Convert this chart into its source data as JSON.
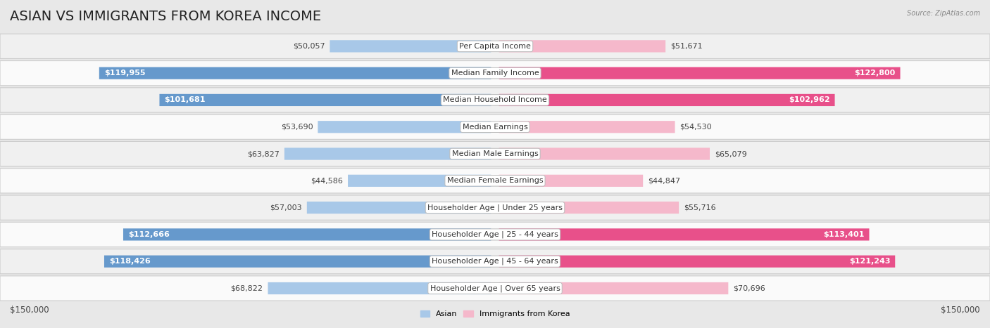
{
  "title": "Asian vs Immigrants from Korea Income",
  "source": "Source: ZipAtlas.com",
  "categories": [
    "Per Capita Income",
    "Median Family Income",
    "Median Household Income",
    "Median Earnings",
    "Median Male Earnings",
    "Median Female Earnings",
    "Householder Age | Under 25 years",
    "Householder Age | 25 - 44 years",
    "Householder Age | 45 - 64 years",
    "Householder Age | Over 65 years"
  ],
  "asian_values": [
    50057,
    119955,
    101681,
    53690,
    63827,
    44586,
    57003,
    112666,
    118426,
    68822
  ],
  "korea_values": [
    51671,
    122800,
    102962,
    54530,
    65079,
    44847,
    55716,
    113401,
    121243,
    70696
  ],
  "asian_labels": [
    "$50,057",
    "$119,955",
    "$101,681",
    "$53,690",
    "$63,827",
    "$44,586",
    "$57,003",
    "$112,666",
    "$118,426",
    "$68,822"
  ],
  "korea_labels": [
    "$51,671",
    "$122,800",
    "$102,962",
    "$54,530",
    "$65,079",
    "$44,847",
    "$55,716",
    "$113,401",
    "$121,243",
    "$70,696"
  ],
  "asian_color_light": "#a8c8e8",
  "asian_color_dark": "#6699cc",
  "korea_color_light": "#f5b8cb",
  "korea_color_dark": "#e8508a",
  "inside_label_threshold": 85000,
  "max_value": 150000,
  "background_color": "#e8e8e8",
  "row_bg_even": "#f0f0f0",
  "row_bg_odd": "#fafafa",
  "legend_asian": "Asian",
  "legend_korea": "Immigrants from Korea",
  "xlabel_left": "$150,000",
  "xlabel_right": "$150,000",
  "title_fontsize": 14,
  "label_fontsize": 8,
  "category_fontsize": 8,
  "axis_fontsize": 8.5
}
